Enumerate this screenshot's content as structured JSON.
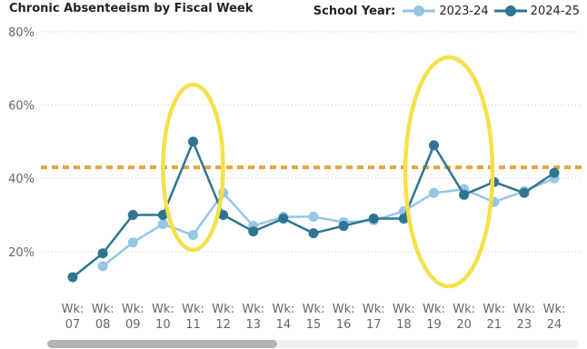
{
  "chart_data": {
    "type": "line",
    "title": "Chronic Absenteeism by Fiscal Week",
    "legend_title": "School Year:",
    "legend_position": "top-right",
    "categories": [
      "Wk: 07",
      "Wk: 08",
      "Wk: 09",
      "Wk: 10",
      "Wk: 11",
      "Wk: 12",
      "Wk: 13",
      "Wk: 14",
      "Wk: 15",
      "Wk: 16",
      "Wk: 17",
      "Wk: 18",
      "Wk: 19",
      "Wk: 20",
      "Wk: 21",
      "Wk: 23",
      "Wk: 24"
    ],
    "ylim": [
      12,
      80
    ],
    "yticks": [
      20,
      40,
      60,
      80
    ],
    "ytick_labels": [
      "20%",
      "40%",
      "60%",
      "80%"
    ],
    "grid": true,
    "reference_line": {
      "value": 43,
      "color": "#E8A33B"
    },
    "highlighted_categories": [
      [
        "Wk: 11"
      ],
      [
        "Wk: 19",
        "Wk: 20"
      ]
    ],
    "highlight_color": "#F5E04A",
    "series": [
      {
        "name": "2023-24",
        "color": "#95C6E5",
        "values": [
          null,
          16,
          22.5,
          27.5,
          24.5,
          36,
          27,
          29.5,
          29.5,
          28,
          28.5,
          31,
          36,
          37,
          33.5,
          36.5,
          40
        ]
      },
      {
        "name": "2024-25",
        "color": "#2F7592",
        "values": [
          13,
          19.5,
          30,
          30,
          50,
          30,
          25.5,
          29,
          25,
          27,
          29,
          29,
          49,
          35.5,
          39,
          36,
          41.5
        ]
      }
    ]
  }
}
